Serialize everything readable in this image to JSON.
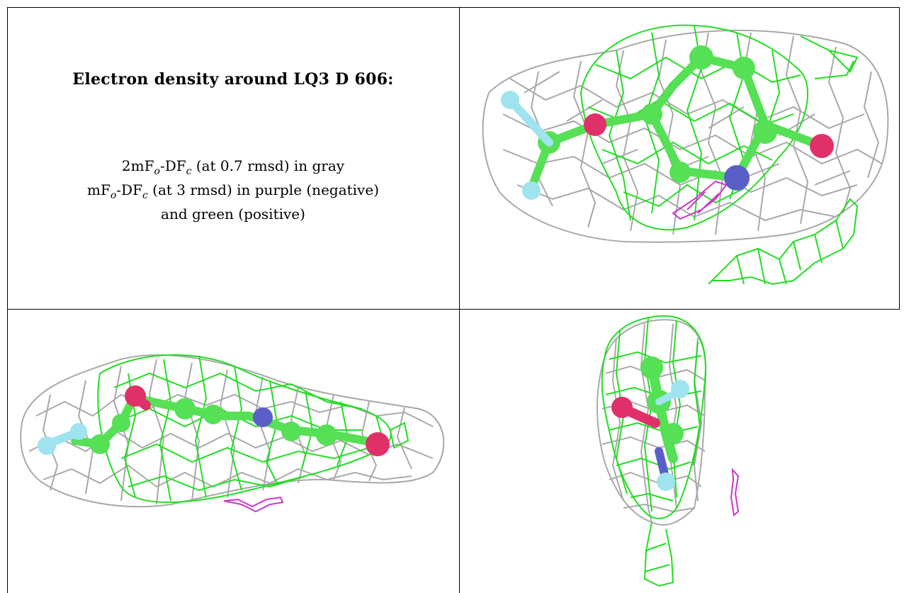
{
  "title": "Electron density around LQ3 D 606:",
  "legend": {
    "line1": {
      "a": "2mF",
      "a_sub": "o",
      "b": "-DF",
      "b_sub": "c",
      "c": " (at 0.7 rmsd) in gray"
    },
    "line2": {
      "a": "mF",
      "a_sub": "o",
      "b": "-DF",
      "b_sub": "c",
      "c": " (at 3 rmsd) in purple (negative)"
    },
    "line3": "and green (positive)"
  },
  "colors": {
    "mesh_2fofc": "#a8a8a8",
    "mesh_fofc_positive": "#22dd22",
    "mesh_fofc_negative": "#cc33cc",
    "carbon": "#55e055",
    "oxygen": "#e0306a",
    "nitrogen": "#5a5fc8",
    "hydrogen": "#9fe3ee"
  },
  "views": [
    "view-top",
    "view-side",
    "view-end"
  ]
}
